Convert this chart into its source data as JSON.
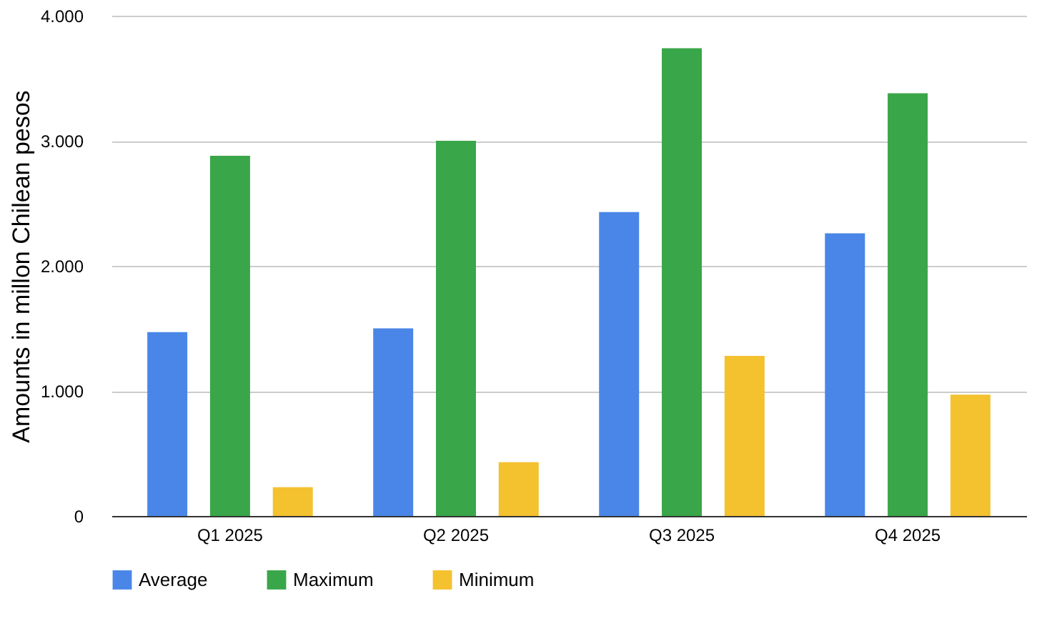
{
  "chart_data": {
    "type": "bar",
    "ylabel": "Amounts in millon Chilean pesos",
    "categories": [
      "Q1 2025",
      "Q2 2025",
      "Q3 2025",
      "Q4 2025"
    ],
    "series": [
      {
        "name": "Average",
        "color": "#4a86e8",
        "values": [
          1470,
          1500,
          2430,
          2260
        ]
      },
      {
        "name": "Maximum",
        "color": "#3aa64a",
        "values": [
          2880,
          3000,
          3740,
          3380
        ]
      },
      {
        "name": "Minimum",
        "color": "#f4c12f",
        "values": [
          230,
          430,
          1280,
          970
        ]
      }
    ],
    "ylim": [
      0,
      4000
    ],
    "yticks": [
      {
        "value": 0,
        "label": "0"
      },
      {
        "value": 1000,
        "label": "1.000"
      },
      {
        "value": 2000,
        "label": "2.000"
      },
      {
        "value": 3000,
        "label": "3.000"
      },
      {
        "value": 4000,
        "label": "4.000"
      }
    ],
    "grid": "y",
    "legend": "bottom"
  }
}
